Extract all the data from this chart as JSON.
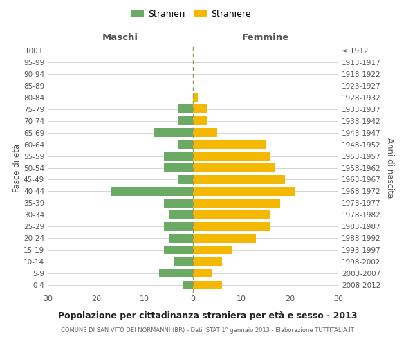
{
  "age_groups": [
    "0-4",
    "5-9",
    "10-14",
    "15-19",
    "20-24",
    "25-29",
    "30-34",
    "35-39",
    "40-44",
    "45-49",
    "50-54",
    "55-59",
    "60-64",
    "65-69",
    "70-74",
    "75-79",
    "80-84",
    "85-89",
    "90-94",
    "95-99",
    "100+"
  ],
  "birth_years": [
    "2008-2012",
    "2003-2007",
    "1998-2002",
    "1993-1997",
    "1988-1992",
    "1983-1987",
    "1978-1982",
    "1973-1977",
    "1968-1972",
    "1963-1967",
    "1958-1962",
    "1953-1957",
    "1948-1952",
    "1943-1947",
    "1938-1942",
    "1933-1937",
    "1928-1932",
    "1923-1927",
    "1918-1922",
    "1913-1917",
    "≤ 1912"
  ],
  "maschi": [
    2,
    7,
    4,
    6,
    5,
    6,
    5,
    6,
    17,
    3,
    6,
    6,
    3,
    8,
    3,
    3,
    0,
    0,
    0,
    0,
    0
  ],
  "femmine": [
    6,
    4,
    6,
    8,
    13,
    16,
    16,
    18,
    21,
    19,
    17,
    16,
    15,
    5,
    3,
    3,
    1,
    0,
    0,
    0,
    0
  ],
  "male_color": "#6aaa64",
  "female_color": "#f5b800",
  "title": "Popolazione per cittadinanza straniera per età e sesso - 2013",
  "subtitle": "COMUNE DI SAN VITO DEI NORMANNI (BR) - Dati ISTAT 1° gennaio 2013 - Elaborazione TUTTITALIA.IT",
  "xlabel_left": "Maschi",
  "xlabel_right": "Femmine",
  "ylabel_left": "Fasce di età",
  "ylabel_right": "Anni di nascita",
  "legend_stranieri": "Stranieri",
  "legend_straniere": "Straniere",
  "xlim": 30,
  "background_color": "#ffffff",
  "grid_color": "#cccccc"
}
